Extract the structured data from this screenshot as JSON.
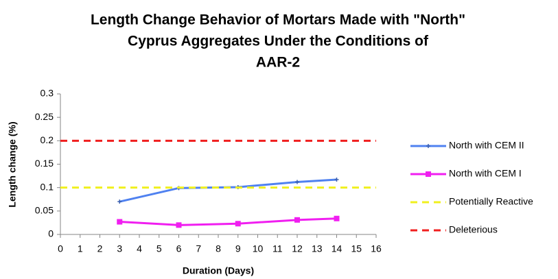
{
  "chart_data": {
    "type": "line",
    "title": [
      "Length Change Behavior of Mortars Made with \"North\"",
      "Cyprus Aggregates Under the Conditions of",
      "AAR-2"
    ],
    "xlabel": "Duration (Days)",
    "ylabel": "Length change (%)",
    "xlim": [
      0,
      16
    ],
    "xticks": [
      0,
      1,
      2,
      3,
      4,
      5,
      6,
      7,
      8,
      9,
      10,
      11,
      12,
      13,
      14,
      15,
      16
    ],
    "ylim": [
      0,
      0.3
    ],
    "yticks": [
      0,
      0.05,
      0.1,
      0.15,
      0.2,
      0.25,
      0.3
    ],
    "legend": "right",
    "series": [
      {
        "name": "North with CEM II",
        "color": "#4f81f0",
        "marker": "plus",
        "dash": false,
        "x": [
          3,
          6,
          9,
          12,
          14
        ],
        "values": [
          0.07,
          0.099,
          0.101,
          0.112,
          0.117
        ]
      },
      {
        "name": "North with CEM I",
        "color": "#f01ef0",
        "marker": "square",
        "dash": false,
        "x": [
          3,
          6,
          9,
          12,
          14
        ],
        "values": [
          0.027,
          0.02,
          0.023,
          0.031,
          0.034
        ]
      },
      {
        "name": "Potentially Reactive",
        "color": "#f0f01e",
        "marker": "none",
        "dash": true,
        "x": [
          0,
          16
        ],
        "values": [
          0.1,
          0.1
        ]
      },
      {
        "name": "Deleterious",
        "color": "#f01e1e",
        "marker": "none",
        "dash": true,
        "x": [
          0,
          16
        ],
        "values": [
          0.2,
          0.2
        ]
      }
    ]
  }
}
